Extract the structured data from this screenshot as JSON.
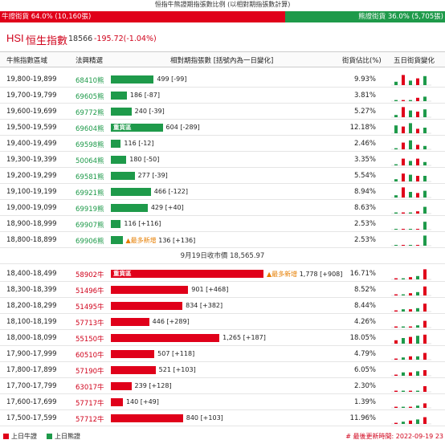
{
  "title": "恒指牛熊證期指張數比例 (以相對期指張數計算)",
  "ratio": {
    "bull_label": "牛證街貨 64.0% (10,160張)",
    "bear_label": "熊證街貨 36.0% (5,705張)",
    "bull_pct": 64.0,
    "bull_color": "#e0001a",
    "bear_color": "#1e9a4a"
  },
  "index": {
    "code": "HSI",
    "name": "恒生指數",
    "value": "18566",
    "change": "-195.72(-1.04%)"
  },
  "headers": {
    "range": "牛熊指數區域",
    "code": "法興精選",
    "contracts": "相對期指張數 [括號內為一日變化]",
    "pct": "街貨佔比(%)",
    "five_day": "五日街貨變化"
  },
  "max_contracts": 1778,
  "bear_rows": [
    {
      "range": "19,800-19,899",
      "code": "68410熊",
      "contracts": 499,
      "label": "499 [-99]",
      "pct": "9.93%",
      "spark": [
        0.3,
        0.9,
        0.4,
        0.6,
        0.8
      ]
    },
    {
      "range": "19,700-19,799",
      "code": "69605熊",
      "contracts": 186,
      "label": "186 [-87]",
      "pct": "3.81%",
      "spark": [
        0.1,
        0.1,
        0.1,
        0.3,
        0.4
      ]
    },
    {
      "range": "19,600-19,699",
      "code": "69772熊",
      "contracts": 240,
      "label": "240 [-39]",
      "pct": "5.27%",
      "spark": [
        0.2,
        0.9,
        0.6,
        0.5,
        0.7
      ]
    },
    {
      "range": "19,500-19,599",
      "code": "69604熊",
      "contracts": 604,
      "label": "604 [-289]",
      "pct": "12.18%",
      "tag": "重貨區",
      "spark": [
        0.7,
        0.6,
        0.9,
        0.4,
        0.5
      ]
    },
    {
      "range": "19,400-19,499",
      "code": "69598熊",
      "contracts": 116,
      "label": "116 [-12]",
      "pct": "2.46%",
      "spark": [
        0.1,
        0.6,
        0.8,
        0.4,
        0.3
      ]
    },
    {
      "range": "19,300-19,399",
      "code": "50064熊",
      "contracts": 180,
      "label": "180 [-50]",
      "pct": "3.35%",
      "spark": [
        0.1,
        0.6,
        0.4,
        0.6,
        0.3
      ]
    },
    {
      "range": "19,200-19,299",
      "code": "69581熊",
      "contracts": 277,
      "label": "277 [-39]",
      "pct": "5.54%",
      "spark": [
        0.2,
        0.7,
        0.6,
        0.5,
        0.5
      ]
    },
    {
      "range": "19,100-19,199",
      "code": "69921熊",
      "contracts": 466,
      "label": "466 [-122]",
      "pct": "8.94%",
      "spark": [
        0.2,
        0.9,
        0.5,
        0.4,
        0.6
      ]
    },
    {
      "range": "19,000-19,099",
      "code": "69919熊",
      "contracts": 429,
      "label": "429 [+40]",
      "pct": "8.63%",
      "spark": [
        0.1,
        0.1,
        0.1,
        0.2,
        0.6
      ]
    },
    {
      "range": "18,900-18,999",
      "code": "69907熊",
      "contracts": 116,
      "label": "116 [+116]",
      "pct": "2.53%",
      "spark": [
        0,
        0,
        0,
        0,
        0.7
      ]
    },
    {
      "range": "18,800-18,899",
      "code": "69906熊",
      "contracts": 136,
      "label": "136 [+136]",
      "pct": "2.53%",
      "new_tag": "▲最多新增",
      "spark": [
        0,
        0,
        0,
        0,
        0.9
      ]
    }
  ],
  "separator": "9月19日收市價 18,565.97",
  "bull_rows": [
    {
      "range": "18,400-18,499",
      "code": "58902牛",
      "contracts": 1778,
      "label": "1,778 [+908]",
      "pct": "16.71%",
      "tag": "重貨區",
      "new_tag": "▲最多新增",
      "spark": [
        0.1,
        0.1,
        0.2,
        0.3,
        0.9
      ]
    },
    {
      "range": "18,300-18,399",
      "code": "51496牛",
      "contracts": 901,
      "label": "901 [+468]",
      "pct": "8.52%",
      "spark": [
        0.1,
        0.1,
        0.2,
        0.3,
        0.8
      ]
    },
    {
      "range": "18,200-18,299",
      "code": "51495牛",
      "contracts": 834,
      "label": "834 [+382]",
      "pct": "8.44%",
      "spark": [
        0.1,
        0.2,
        0.2,
        0.3,
        0.7
      ]
    },
    {
      "range": "18,100-18,199",
      "code": "57713牛",
      "contracts": 446,
      "label": "446 [+289]",
      "pct": "4.26%",
      "spark": [
        0.1,
        0.1,
        0.1,
        0.2,
        0.6
      ]
    },
    {
      "range": "18,000-18,099",
      "code": "55150牛",
      "contracts": 1265,
      "label": "1,265 [+187]",
      "pct": "18.05%",
      "spark": [
        0.3,
        0.5,
        0.6,
        0.7,
        0.8
      ]
    },
    {
      "range": "17,900-17,999",
      "code": "60510牛",
      "contracts": 507,
      "label": "507 [+118]",
      "pct": "4.79%",
      "spark": [
        0.1,
        0.2,
        0.3,
        0.3,
        0.6
      ]
    },
    {
      "range": "17,800-17,899",
      "code": "57190牛",
      "contracts": 521,
      "label": "521 [+103]",
      "pct": "6.05%",
      "spark": [
        0.1,
        0.3,
        0.3,
        0.4,
        0.5
      ]
    },
    {
      "range": "17,700-17,799",
      "code": "63017牛",
      "contracts": 239,
      "label": "239 [+128]",
      "pct": "2.30%",
      "spark": [
        0.1,
        0.1,
        0.1,
        0.1,
        0.5
      ]
    },
    {
      "range": "17,600-17,699",
      "code": "57717牛",
      "contracts": 140,
      "label": "140 [+49]",
      "pct": "1.39%",
      "spark": [
        0.1,
        0.1,
        0.1,
        0.2,
        0.4
      ]
    },
    {
      "range": "17,500-17,599",
      "code": "57712牛",
      "contracts": 840,
      "label": "840 [+103]",
      "pct": "11.96%",
      "spark": [
        0.1,
        0.2,
        0.3,
        0.4,
        0.6
      ]
    }
  ],
  "legend": {
    "bull": "上日牛證",
    "bear": "上日熊證"
  },
  "updated": "# 最後更新時間: 2022-09-19 23"
}
